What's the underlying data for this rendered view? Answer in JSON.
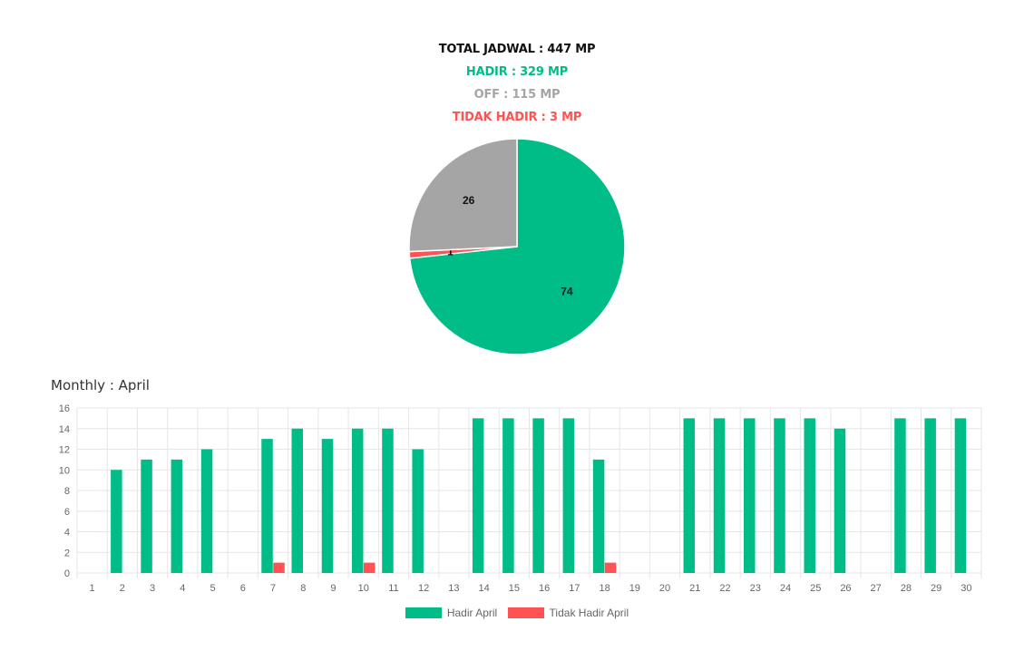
{
  "summary": {
    "total": "TOTAL JADWAL : 447 MP",
    "hadir": "HADIR : 329 MP",
    "off": "OFF : 115 MP",
    "tidak_hadir": "TIDAK HADIR : 3 MP"
  },
  "colors": {
    "total": "#111111",
    "hadir": "#00bd88",
    "off": "#a5a5a5",
    "tidak_hadir": "#ff5252",
    "grid": "#e6e6e6",
    "tick": "#666666"
  },
  "monthly_title": "Monthly : April",
  "chart_data": [
    {
      "type": "pie",
      "slices": [
        {
          "value": 74,
          "label": "74",
          "color": "#00bd88"
        },
        {
          "value": 1,
          "label": "1",
          "color": "#ff5252"
        },
        {
          "value": 26,
          "label": "26",
          "color": "#a5a5a5"
        }
      ]
    },
    {
      "type": "bar",
      "categories": [
        "1",
        "2",
        "3",
        "4",
        "5",
        "6",
        "7",
        "8",
        "9",
        "10",
        "11",
        "12",
        "13",
        "14",
        "15",
        "16",
        "17",
        "18",
        "19",
        "20",
        "21",
        "22",
        "23",
        "24",
        "25",
        "26",
        "27",
        "28",
        "29",
        "30"
      ],
      "series": [
        {
          "name": "Hadir April",
          "color": "#00bd88",
          "values": [
            0,
            10,
            11,
            11,
            12,
            0,
            13,
            14,
            13,
            14,
            14,
            12,
            0,
            15,
            15,
            15,
            15,
            11,
            0,
            0,
            15,
            15,
            15,
            15,
            15,
            14,
            0,
            15,
            15,
            15
          ]
        },
        {
          "name": "Tidak Hadir April",
          "color": "#ff5252",
          "values": [
            0,
            0,
            0,
            0,
            0,
            0,
            1,
            0,
            0,
            1,
            0,
            0,
            0,
            0,
            0,
            0,
            0,
            1,
            0,
            0,
            0,
            0,
            0,
            0,
            0,
            0,
            0,
            0,
            0,
            0
          ]
        }
      ],
      "ylim": [
        0,
        16
      ],
      "yticks": [
        0,
        2,
        4,
        6,
        8,
        10,
        12,
        14,
        16
      ],
      "grid": true,
      "legend": "bottom"
    }
  ]
}
